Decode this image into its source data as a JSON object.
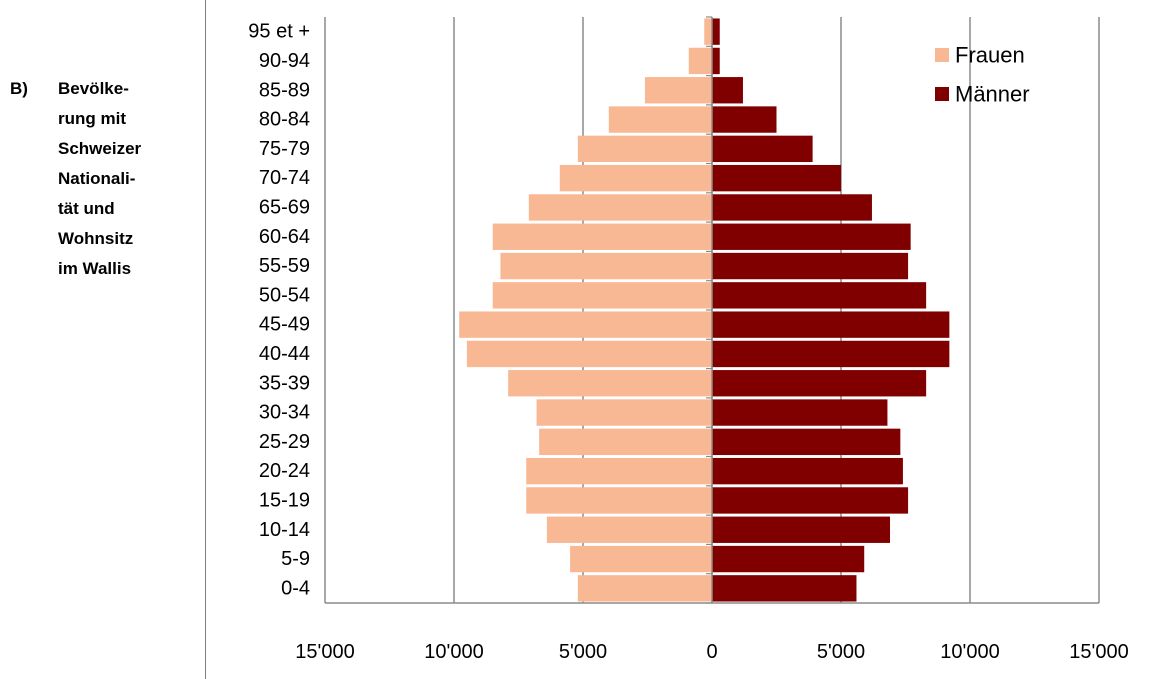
{
  "side_label": {
    "letter": "B)",
    "lines": [
      "Bevölke-",
      "rung mit",
      "Schweizer",
      "Nationali-",
      "tät und",
      "Wohnsitz",
      "im Wallis"
    ]
  },
  "chart_data": {
    "type": "bar",
    "orientation": "horizontal",
    "layout": "population-pyramid",
    "categories": [
      "95 et +",
      "90-94",
      "85-89",
      "80-84",
      "75-79",
      "70-74",
      "65-69",
      "60-64",
      "55-59",
      "50-54",
      "45-49",
      "40-44",
      "35-39",
      "30-34",
      "25-29",
      "20-24",
      "15-19",
      "10-14",
      "5-9",
      "0-4"
    ],
    "series": [
      {
        "name": "Frauen",
        "color": "#f8b893",
        "side": "left",
        "values": [
          300,
          900,
          2600,
          4000,
          5200,
          5900,
          7100,
          8500,
          8200,
          8500,
          9800,
          9500,
          7900,
          6800,
          6700,
          7200,
          7200,
          6400,
          5500,
          5200
        ]
      },
      {
        "name": "Männer",
        "color": "#800000",
        "side": "right",
        "values": [
          300,
          300,
          1200,
          2500,
          3900,
          5000,
          6200,
          7700,
          7600,
          8300,
          9200,
          9200,
          8300,
          6800,
          7300,
          7400,
          7600,
          6900,
          5900,
          5600
        ]
      }
    ],
    "x_ticks": [
      "15'000",
      "10'000",
      "5'000",
      "0",
      "5'000",
      "10'000",
      "15'000"
    ],
    "xlim": [
      -15000,
      15000
    ],
    "grid": true,
    "legend_position": "top-right"
  }
}
